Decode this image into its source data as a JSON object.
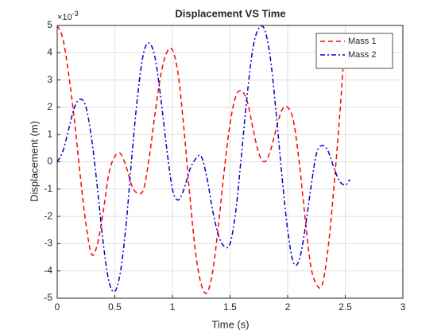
{
  "chart_data": {
    "type": "line",
    "title": "Displacement VS Time",
    "xlabel": "Time (s)",
    "ylabel": "Displacement (m)",
    "y_exponent": {
      "base": "×10",
      "power": "-3"
    },
    "xlim": [
      0,
      3
    ],
    "ylim": [
      -5,
      5
    ],
    "xticks": [
      0,
      0.5,
      1,
      1.5,
      2,
      2.5,
      3
    ],
    "yticks": [
      -5,
      -4,
      -3,
      -2,
      -1,
      0,
      1,
      2,
      3,
      4,
      5
    ],
    "grid": true,
    "legend": "northeast",
    "series": [
      {
        "name": "Mass 1",
        "color": "#ff0000",
        "dash": "dashed",
        "x": [
          0,
          0.05,
          0.1,
          0.15,
          0.2,
          0.25,
          0.3,
          0.35,
          0.4,
          0.45,
          0.5,
          0.55,
          0.6,
          0.65,
          0.7,
          0.75,
          0.8,
          0.85,
          0.9,
          0.95,
          1,
          1.05,
          1.1,
          1.15,
          1.2,
          1.25,
          1.3,
          1.35,
          1.4,
          1.45,
          1.5,
          1.55,
          1.6,
          1.65,
          1.7,
          1.75,
          1.8,
          1.85,
          1.9,
          1.95,
          2,
          2.05,
          2.1,
          2.15,
          2.2,
          2.25,
          2.3,
          2.35,
          2.4,
          2.45,
          2.48
        ],
        "values": [
          5,
          4.5,
          3.2,
          1.5,
          -0.5,
          -2.3,
          -3.4,
          -3.0,
          -1.8,
          -0.4,
          0.2,
          0.3,
          -0.2,
          -0.9,
          -1.15,
          -1.0,
          0.2,
          1.8,
          3.2,
          4.0,
          4.1,
          3.2,
          1.2,
          -1.2,
          -3.3,
          -4.5,
          -4.8,
          -4.0,
          -2.3,
          -0.3,
          1.4,
          2.4,
          2.6,
          2.2,
          1.2,
          0.3,
          0.0,
          0.4,
          1.2,
          1.9,
          2.0,
          1.5,
          0.0,
          -2.0,
          -3.8,
          -4.5,
          -4.5,
          -3.2,
          -1.0,
          1.6,
          3.4
        ]
      },
      {
        "name": "Mass 2",
        "color": "#0000cc",
        "dash": "dashdot",
        "x": [
          0,
          0.05,
          0.1,
          0.15,
          0.2,
          0.25,
          0.3,
          0.35,
          0.4,
          0.45,
          0.5,
          0.55,
          0.6,
          0.65,
          0.7,
          0.75,
          0.8,
          0.85,
          0.9,
          0.95,
          1,
          1.05,
          1.1,
          1.15,
          1.2,
          1.25,
          1.3,
          1.35,
          1.4,
          1.45,
          1.5,
          1.55,
          1.6,
          1.65,
          1.7,
          1.75,
          1.8,
          1.85,
          1.9,
          1.95,
          2,
          2.05,
          2.1,
          2.15,
          2.2,
          2.25,
          2.3,
          2.35,
          2.4,
          2.45,
          2.5,
          2.54
        ],
        "values": [
          0,
          0.4,
          1.2,
          2.0,
          2.3,
          2.0,
          0.8,
          -1.0,
          -3.0,
          -4.4,
          -4.75,
          -4.0,
          -2.2,
          0.3,
          2.5,
          4.0,
          4.35,
          3.8,
          2.3,
          0.5,
          -1.0,
          -1.4,
          -1.0,
          -0.3,
          0.1,
          0.2,
          -0.6,
          -1.8,
          -2.7,
          -3.1,
          -3.0,
          -1.8,
          0.3,
          2.5,
          4.2,
          4.9,
          4.85,
          3.8,
          1.8,
          -0.5,
          -2.5,
          -3.7,
          -3.6,
          -2.5,
          -1.0,
          0.3,
          0.6,
          0.4,
          -0.2,
          -0.7,
          -0.85,
          -0.65
        ]
      }
    ]
  }
}
